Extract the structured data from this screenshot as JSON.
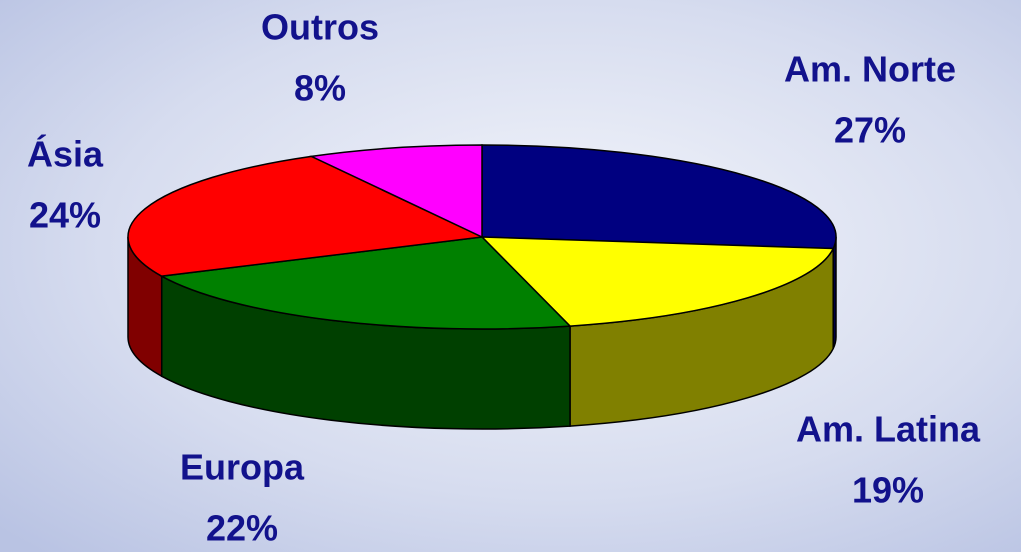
{
  "chart_data": {
    "type": "pie3d",
    "categories": [
      "Am. Norte",
      "Am. Latina",
      "Europa",
      "Ásia",
      "Outros"
    ],
    "values": [
      27,
      19,
      22,
      24,
      8
    ],
    "value_labels": [
      "27%",
      "19%",
      "22%",
      "24%",
      "8%"
    ],
    "colors": [
      "#000080",
      "#ffff00",
      "#008000",
      "#ff0000",
      "#ff00ff"
    ]
  }
}
